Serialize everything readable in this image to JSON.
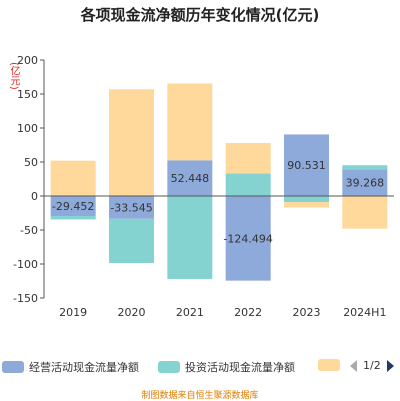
{
  "title": "各项现金流净额历年变化情况(亿元)",
  "unit_label": "(亿元)",
  "source": "制图数据来自恒生聚源数据库",
  "colors": {
    "operating": "#8eaadb",
    "investing": "#84d3d1",
    "financing": "#ffd89b",
    "axis": "#555555",
    "grid": "#e6e6e6"
  },
  "legend": {
    "items": [
      {
        "name": "经营活动现金流量净额",
        "color": "#8eaadb"
      },
      {
        "name": "投资活动现金流量净额",
        "color": "#84d3d1"
      },
      {
        "name": "",
        "color": "#ffd89b"
      }
    ],
    "page_text": "1/2"
  },
  "chart_data": {
    "type": "bar",
    "stacked": true,
    "categories": [
      "2019",
      "2020",
      "2021",
      "2022",
      "2023",
      "2024H1"
    ],
    "series": [
      {
        "name": "经营活动现金流量净额",
        "values": [
          -29.452,
          -33.545,
          52.448,
          -124.494,
          90.531,
          39.268
        ]
      },
      {
        "name": "投资活动现金流量净额",
        "values": [
          -5,
          -65,
          -122,
          33,
          -9,
          6
        ]
      },
      {
        "name": "",
        "values": [
          52,
          157,
          113,
          45,
          -8,
          -48
        ]
      }
    ],
    "data_labels": [
      "-29.452",
      "-33.545",
      "52.448",
      "-124.494",
      "90.531",
      "39.268"
    ],
    "y_ticks": [
      200,
      150,
      100,
      50,
      0,
      -50,
      -100,
      -150
    ],
    "ylim": [
      -150,
      200
    ],
    "grid": false,
    "legend_position": "bottom"
  }
}
